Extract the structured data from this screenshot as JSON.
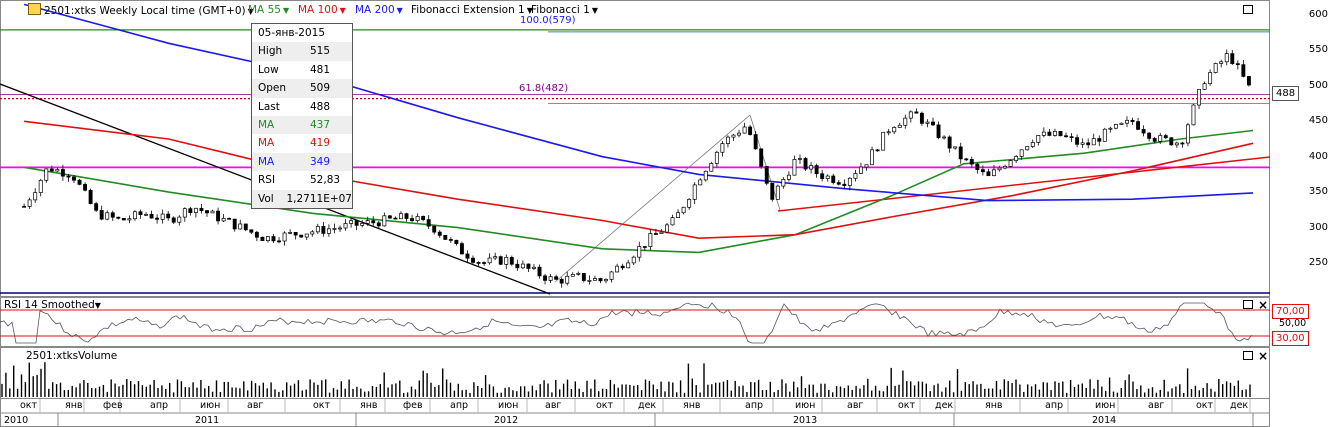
{
  "toolbar": {
    "symbol": "2501:xtks Weekly Local time (GMT+0)",
    "ma55": "MA 55",
    "ma100": "MA 100",
    "ma200": "MA 200",
    "fib_ext": "Fibonacci Extension 1",
    "fib": "Fibonacci 1"
  },
  "info": {
    "date": "05-янв-2015",
    "rows": [
      {
        "k": "High",
        "v": "515",
        "color": "#000000"
      },
      {
        "k": "Low",
        "v": "481",
        "color": "#000000"
      },
      {
        "k": "Open",
        "v": "509",
        "color": "#000000"
      },
      {
        "k": "Last",
        "v": "488",
        "color": "#000000"
      },
      {
        "k": "MA",
        "v": "437",
        "color": "#228b22"
      },
      {
        "k": "MA",
        "v": "419",
        "color": "#dd1111"
      },
      {
        "k": "MA",
        "v": "349",
        "color": "#1a1aee"
      },
      {
        "k": "RSI",
        "v": "52,83",
        "color": "#000000"
      },
      {
        "k": "Vol",
        "v": "1,2711E+07",
        "color": "#000000"
      }
    ]
  },
  "fib_labels": {
    "l100": "100.0(579)",
    "l618": "61.8(482)"
  },
  "last_price_tag": "488",
  "rsi_panel": {
    "title": "RSI 14 Smoothed",
    "levels": [
      "70,00",
      "50,00",
      "30,00"
    ]
  },
  "volume_panel": {
    "title": "2501:xtksVolume"
  },
  "x_months": [
    "окт",
    "янв",
    "фев",
    "апр",
    "июн",
    "авг",
    "окт",
    "янв",
    "фев",
    "апр",
    "июн",
    "авг",
    "окт",
    "дек",
    "янв",
    "апр",
    "июн",
    "авг",
    "окт",
    "дек",
    "янв",
    "апр",
    "июн",
    "авг",
    "окт",
    "дек"
  ],
  "x_years": [
    "2010",
    "2011",
    "2012",
    "2013",
    "2014"
  ],
  "colors": {
    "ma55": "#228b22",
    "ma100": "#dd1111",
    "ma200": "#1a1aee",
    "fib100": "#228b22",
    "magenta": "#ff00ff"
  },
  "chart_data": {
    "type": "candlestick",
    "title": "2501:xtks Weekly Local time (GMT+0)",
    "y_axis": {
      "ticks": [
        250,
        300,
        350,
        400,
        450,
        500,
        550,
        600
      ],
      "ylim": [
        205,
        615
      ]
    },
    "price_points": [
      {
        "date": "2010-10",
        "close": 330
      },
      {
        "date": "2010-11",
        "close": 385
      },
      {
        "date": "2010-12",
        "close": 375
      },
      {
        "date": "2011-01",
        "close": 320
      },
      {
        "date": "2011-02",
        "close": 310
      },
      {
        "date": "2011-03",
        "close": 320
      },
      {
        "date": "2011-04",
        "close": 310
      },
      {
        "date": "2011-05",
        "close": 330
      },
      {
        "date": "2011-06",
        "close": 315
      },
      {
        "date": "2011-07",
        "close": 300
      },
      {
        "date": "2011-08",
        "close": 285
      },
      {
        "date": "2011-09",
        "close": 290
      },
      {
        "date": "2011-10",
        "close": 295
      },
      {
        "date": "2011-11",
        "close": 300
      },
      {
        "date": "2011-12",
        "close": 305
      },
      {
        "date": "2012-01",
        "close": 310
      },
      {
        "date": "2012-02",
        "close": 315
      },
      {
        "date": "2012-03",
        "close": 300
      },
      {
        "date": "2012-04",
        "close": 270
      },
      {
        "date": "2012-05",
        "close": 250
      },
      {
        "date": "2012-06",
        "close": 255
      },
      {
        "date": "2012-07",
        "close": 240
      },
      {
        "date": "2012-08",
        "close": 225
      },
      {
        "date": "2012-09",
        "close": 230
      },
      {
        "date": "2012-10",
        "close": 225
      },
      {
        "date": "2012-11",
        "close": 255
      },
      {
        "date": "2012-12",
        "close": 285
      },
      {
        "date": "2013-01",
        "close": 310
      },
      {
        "date": "2013-02",
        "close": 370
      },
      {
        "date": "2013-03",
        "close": 420
      },
      {
        "date": "2013-04",
        "close": 445
      },
      {
        "date": "2013-05",
        "close": 340
      },
      {
        "date": "2013-06",
        "close": 395
      },
      {
        "date": "2013-07",
        "close": 375
      },
      {
        "date": "2013-08",
        "close": 365
      },
      {
        "date": "2013-09",
        "close": 395
      },
      {
        "date": "2013-10",
        "close": 445
      },
      {
        "date": "2013-11",
        "close": 460
      },
      {
        "date": "2013-12",
        "close": 430
      },
      {
        "date": "2014-01",
        "close": 395
      },
      {
        "date": "2014-02",
        "close": 370
      },
      {
        "date": "2014-03",
        "close": 400
      },
      {
        "date": "2014-04",
        "close": 430
      },
      {
        "date": "2014-05",
        "close": 430
      },
      {
        "date": "2014-06",
        "close": 415
      },
      {
        "date": "2014-07",
        "close": 435
      },
      {
        "date": "2014-08",
        "close": 450
      },
      {
        "date": "2014-09",
        "close": 425
      },
      {
        "date": "2014-10",
        "close": 420
      },
      {
        "date": "2014-11",
        "close": 510
      },
      {
        "date": "2014-12",
        "close": 545
      },
      {
        "date": "2015-01",
        "close": 488
      }
    ],
    "series": [
      {
        "name": "MA 55",
        "values": [
          {
            "date": "2010-10",
            "v": 385
          },
          {
            "date": "2011-04",
            "v": 350
          },
          {
            "date": "2011-10",
            "v": 320
          },
          {
            "date": "2012-04",
            "v": 300
          },
          {
            "date": "2012-10",
            "v": 270
          },
          {
            "date": "2013-02",
            "v": 265
          },
          {
            "date": "2013-06",
            "v": 290
          },
          {
            "date": "2013-10",
            "v": 345
          },
          {
            "date": "2014-01",
            "v": 390
          },
          {
            "date": "2014-06",
            "v": 405
          },
          {
            "date": "2014-10",
            "v": 425
          },
          {
            "date": "2015-01",
            "v": 437
          }
        ]
      },
      {
        "name": "MA 100",
        "values": [
          {
            "date": "2010-10",
            "v": 450
          },
          {
            "date": "2011-04",
            "v": 425
          },
          {
            "date": "2011-10",
            "v": 375
          },
          {
            "date": "2012-04",
            "v": 340
          },
          {
            "date": "2012-10",
            "v": 310
          },
          {
            "date": "2013-02",
            "v": 285
          },
          {
            "date": "2013-06",
            "v": 290
          },
          {
            "date": "2013-10",
            "v": 315
          },
          {
            "date": "2014-03",
            "v": 345
          },
          {
            "date": "2014-08",
            "v": 380
          },
          {
            "date": "2015-01",
            "v": 419
          }
        ]
      },
      {
        "name": "MA 200",
        "values": [
          {
            "date": "2010-10",
            "v": 615
          },
          {
            "date": "2011-04",
            "v": 560
          },
          {
            "date": "2011-10",
            "v": 515
          },
          {
            "date": "2012-04",
            "v": 455
          },
          {
            "date": "2012-10",
            "v": 400
          },
          {
            "date": "2013-02",
            "v": 375
          },
          {
            "date": "2013-08",
            "v": 355
          },
          {
            "date": "2014-02",
            "v": 338
          },
          {
            "date": "2014-08",
            "v": 340
          },
          {
            "date": "2015-01",
            "v": 349
          }
        ]
      }
    ],
    "horizontal_levels": [
      {
        "label": "100.0(579)",
        "value": 579
      },
      {
        "label": "61.8(482)",
        "value": 482
      },
      {
        "value": 385
      },
      {
        "value": 488
      }
    ]
  }
}
